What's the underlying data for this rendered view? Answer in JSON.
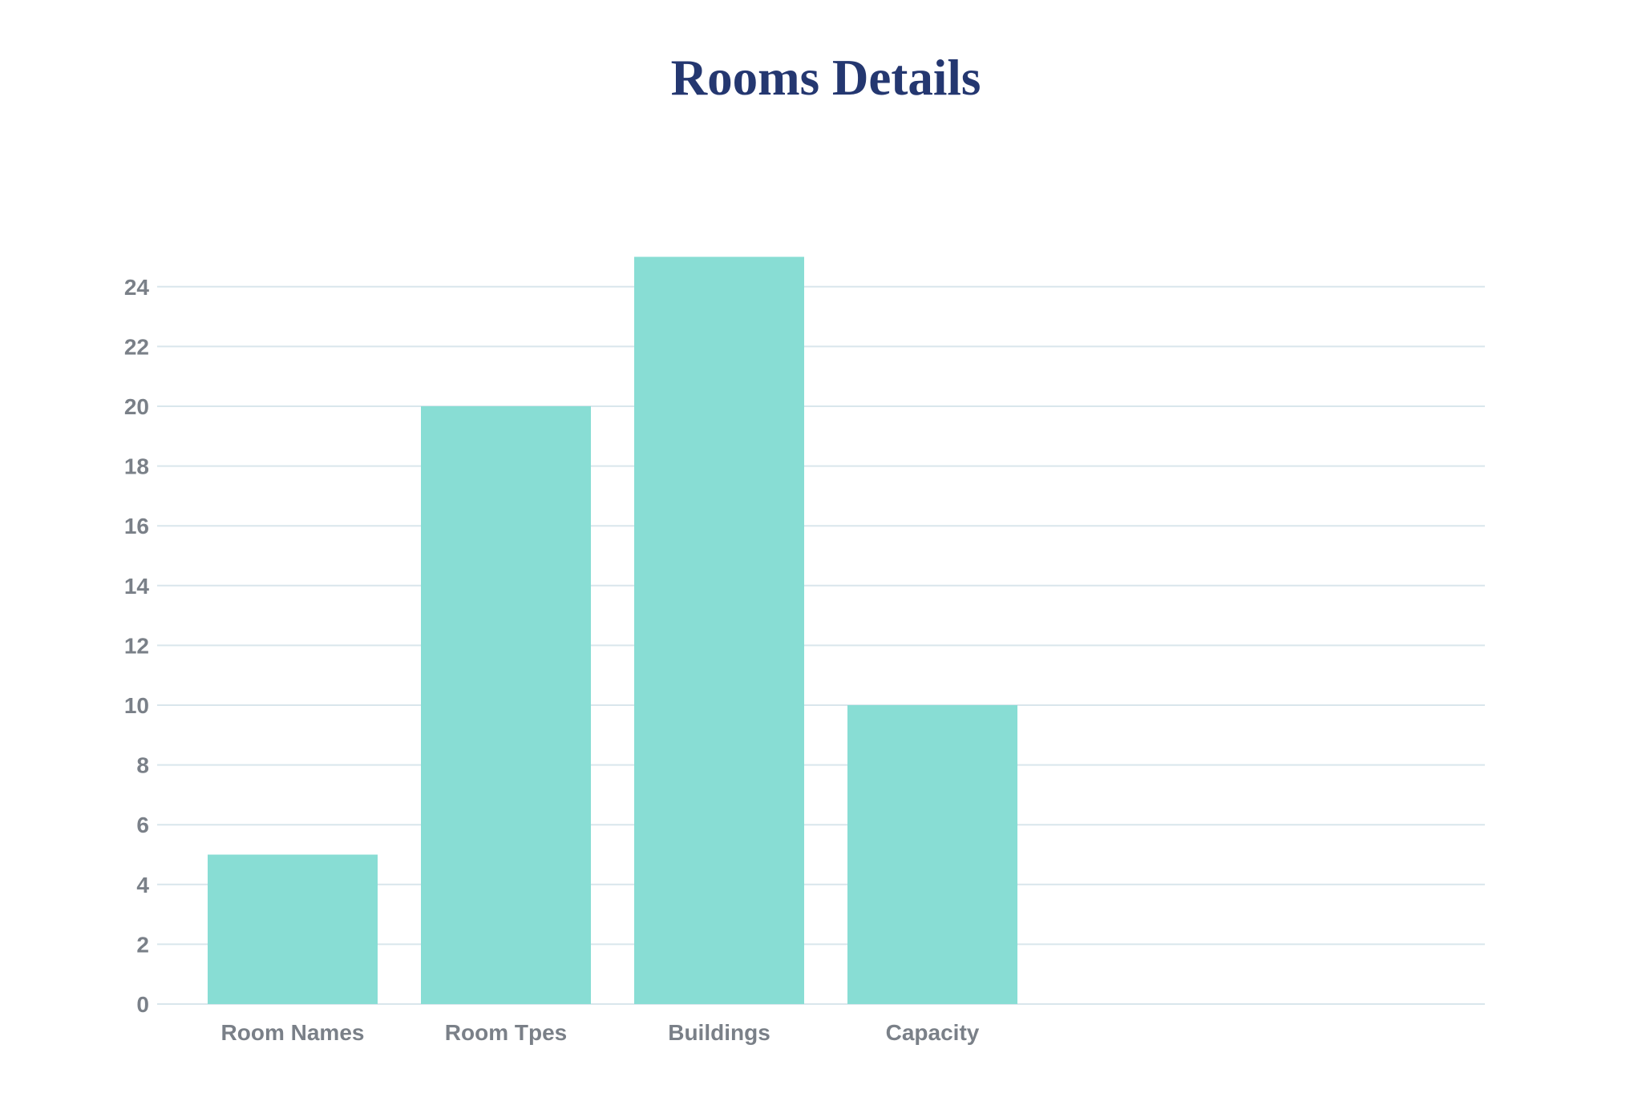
{
  "chart_data": {
    "type": "bar",
    "title": "Rooms Details",
    "xlabel": "",
    "ylabel": "",
    "categories": [
      "Room Names",
      "Room Tpes",
      "Buildings",
      "Capacity"
    ],
    "values": [
      5,
      20,
      25,
      10
    ],
    "ylim": [
      0,
      25
    ],
    "yticks": [
      0,
      2,
      4,
      6,
      8,
      10,
      12,
      14,
      16,
      18,
      20,
      22,
      24
    ],
    "grid": true,
    "legend": "none"
  },
  "colors": {
    "bar": "#88ddd4",
    "title": "#243770",
    "tick_text": "#7a8088",
    "grid": "#d9e6ec"
  }
}
